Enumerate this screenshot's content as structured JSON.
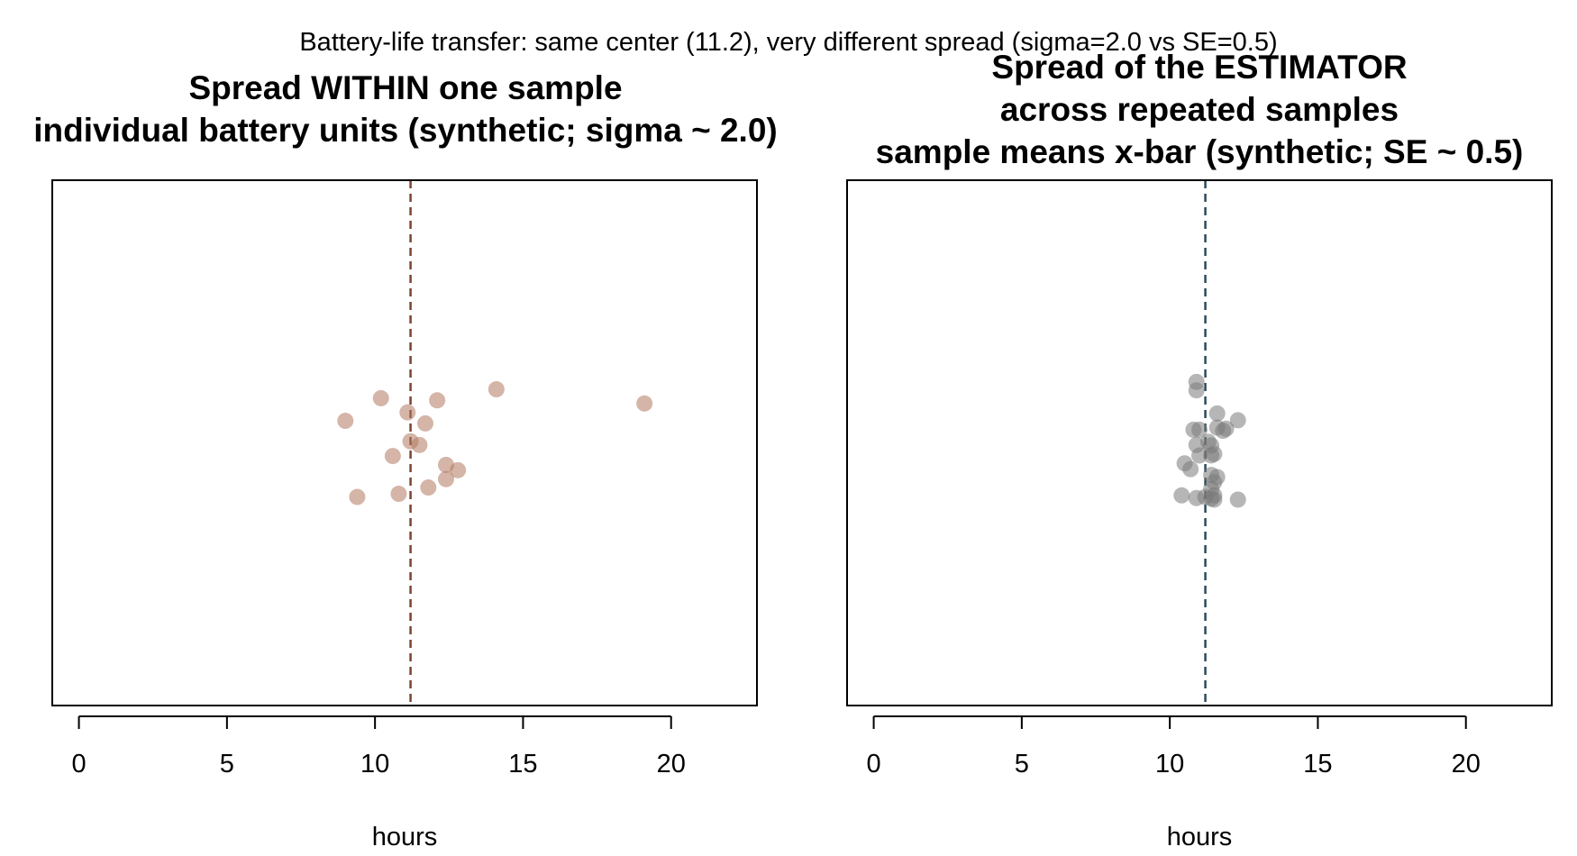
{
  "figure": {
    "suptitle": "Battery-life transfer: same center (11.2), very different spread (sigma=2.0 vs SE=0.5)"
  },
  "chart_data": [
    {
      "type": "scatter",
      "title_lines": [
        "Spread WITHIN one sample",
        "individual battery units (synthetic; sigma ~ 2.0)"
      ],
      "xlabel": "hours",
      "ylabel": "",
      "xlim": [
        -0.9,
        22.9
      ],
      "ylim": [
        0,
        1
      ],
      "xticks": [
        0,
        5,
        10,
        15,
        20
      ],
      "grid": false,
      "center_line": 11.2,
      "center_line_color": "#7a4430",
      "point_color": "#b07860",
      "point_alpha": 0.55,
      "points": [
        {
          "x": 14.1,
          "y": 0.602
        },
        {
          "x": 19.1,
          "y": 0.575
        },
        {
          "x": 10.2,
          "y": 0.585
        },
        {
          "x": 12.1,
          "y": 0.581
        },
        {
          "x": 9.0,
          "y": 0.542
        },
        {
          "x": 11.1,
          "y": 0.558
        },
        {
          "x": 11.7,
          "y": 0.537
        },
        {
          "x": 11.2,
          "y": 0.503
        },
        {
          "x": 11.5,
          "y": 0.496
        },
        {
          "x": 10.6,
          "y": 0.475
        },
        {
          "x": 12.4,
          "y": 0.458
        },
        {
          "x": 12.8,
          "y": 0.448
        },
        {
          "x": 12.4,
          "y": 0.431
        },
        {
          "x": 11.8,
          "y": 0.415
        },
        {
          "x": 10.8,
          "y": 0.403
        },
        {
          "x": 9.4,
          "y": 0.397
        }
      ]
    },
    {
      "type": "scatter",
      "title_lines": [
        "Spread of the ESTIMATOR",
        "across repeated samples",
        "sample means x-bar (synthetic; SE ~ 0.5)"
      ],
      "xlabel": "hours",
      "ylabel": "",
      "xlim": [
        -0.9,
        22.9
      ],
      "ylim": [
        0,
        1
      ],
      "xticks": [
        0,
        5,
        10,
        15,
        20
      ],
      "grid": false,
      "center_line": 11.2,
      "center_line_color": "#2b4a5a",
      "point_color": "#7a7a7a",
      "point_alpha": 0.55,
      "points": [
        {
          "x": 10.9,
          "y": 0.616
        },
        {
          "x": 10.9,
          "y": 0.6
        },
        {
          "x": 11.6,
          "y": 0.556
        },
        {
          "x": 12.3,
          "y": 0.543
        },
        {
          "x": 11.6,
          "y": 0.529
        },
        {
          "x": 11.8,
          "y": 0.523
        },
        {
          "x": 11.9,
          "y": 0.527
        },
        {
          "x": 10.8,
          "y": 0.525
        },
        {
          "x": 11.0,
          "y": 0.525
        },
        {
          "x": 11.3,
          "y": 0.502
        },
        {
          "x": 10.9,
          "y": 0.496
        },
        {
          "x": 11.4,
          "y": 0.495
        },
        {
          "x": 11.0,
          "y": 0.476
        },
        {
          "x": 11.4,
          "y": 0.476
        },
        {
          "x": 11.5,
          "y": 0.479
        },
        {
          "x": 10.5,
          "y": 0.461
        },
        {
          "x": 10.7,
          "y": 0.45
        },
        {
          "x": 11.4,
          "y": 0.439
        },
        {
          "x": 11.5,
          "y": 0.425
        },
        {
          "x": 11.6,
          "y": 0.435
        },
        {
          "x": 11.4,
          "y": 0.412
        },
        {
          "x": 11.5,
          "y": 0.4
        },
        {
          "x": 11.4,
          "y": 0.394
        },
        {
          "x": 10.4,
          "y": 0.4
        },
        {
          "x": 10.9,
          "y": 0.395
        },
        {
          "x": 11.2,
          "y": 0.397
        },
        {
          "x": 12.3,
          "y": 0.392
        },
        {
          "x": 11.5,
          "y": 0.392
        }
      ]
    }
  ]
}
